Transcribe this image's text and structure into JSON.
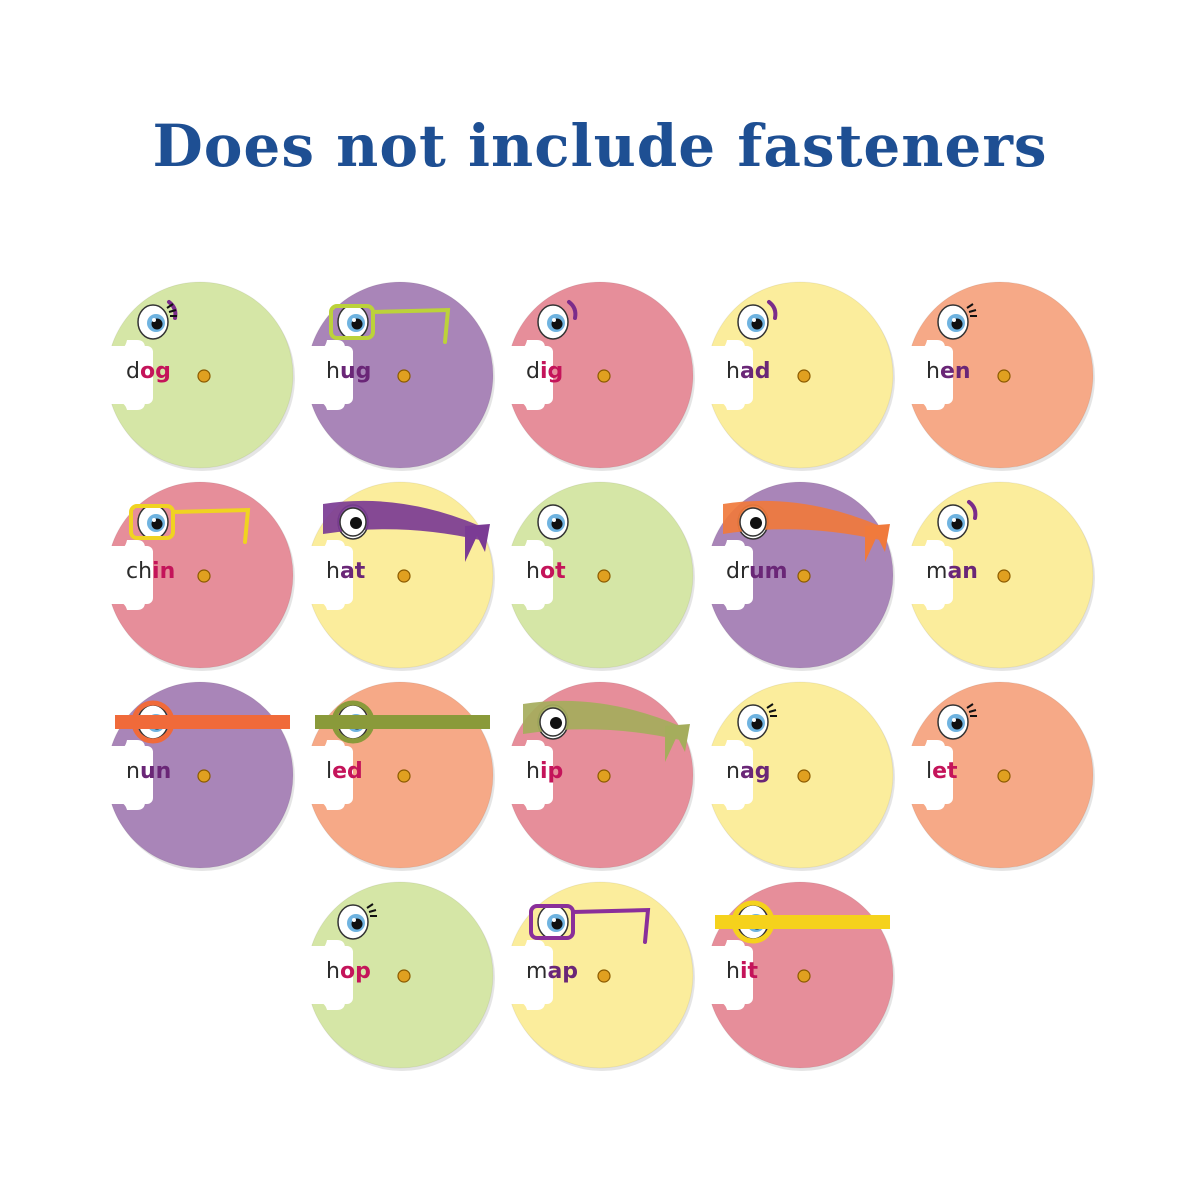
{
  "title": "Does not include fasteners",
  "colors": {
    "title": "#1e4f93",
    "green": "#d5e6a6",
    "purple": "#a985b8",
    "pink": "#e68e9a",
    "yellow": "#fbed9c",
    "peach": "#f6a987",
    "rime_pink": "#c4145a",
    "rime_purple": "#6a2677"
  },
  "cards": [
    {
      "onset": "d",
      "rime": "og",
      "color": "green",
      "accessory": "lashes-brow",
      "accent": ""
    },
    {
      "onset": "h",
      "rime": "ug",
      "color": "purple",
      "accessory": "glasses",
      "accent": "#bcd23a"
    },
    {
      "onset": "d",
      "rime": "ig",
      "color": "pink",
      "accessory": "brow",
      "accent": ""
    },
    {
      "onset": "h",
      "rime": "ad",
      "color": "yellow",
      "accessory": "brow",
      "accent": ""
    },
    {
      "onset": "h",
      "rime": "en",
      "color": "peach",
      "accessory": "lashes",
      "accent": ""
    },
    {
      "onset": "ch",
      "rime": "in",
      "color": "pink",
      "accessory": "glasses",
      "accent": "#f0d321"
    },
    {
      "onset": "h",
      "rime": "at",
      "color": "yellow",
      "accessory": "bandana",
      "accent": "#7b3b94"
    },
    {
      "onset": "h",
      "rime": "ot",
      "color": "green",
      "accessory": "none",
      "accent": ""
    },
    {
      "onset": "dr",
      "rime": "um",
      "color": "purple",
      "accessory": "bandana",
      "accent": "#f07a3c"
    },
    {
      "onset": "m",
      "rime": "an",
      "color": "yellow",
      "accessory": "brow",
      "accent": ""
    },
    {
      "onset": "n",
      "rime": "un",
      "color": "purple",
      "accessory": "band",
      "accent": "#f06a3a"
    },
    {
      "onset": "l",
      "rime": "ed",
      "color": "peach",
      "accessory": "band",
      "accent": "#8a9a3a"
    },
    {
      "onset": "h",
      "rime": "ip",
      "color": "pink",
      "accessory": "bandana",
      "accent": "#a5ad5c"
    },
    {
      "onset": "n",
      "rime": "ag",
      "color": "yellow",
      "accessory": "lashes",
      "accent": ""
    },
    {
      "onset": "l",
      "rime": "et",
      "color": "peach",
      "accessory": "lashes",
      "accent": ""
    },
    {
      "onset": "h",
      "rime": "op",
      "color": "green",
      "accessory": "lashes",
      "accent": ""
    },
    {
      "onset": "m",
      "rime": "ap",
      "color": "yellow",
      "accessory": "glasses",
      "accent": "#8a2f9a"
    },
    {
      "onset": "h",
      "rime": "it",
      "color": "pink",
      "accessory": "band",
      "accent": "#f5d21c"
    }
  ]
}
